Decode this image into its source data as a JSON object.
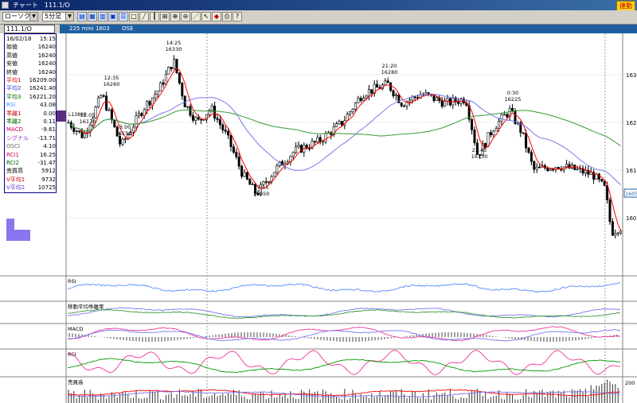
{
  "window": {
    "title": "チャート　111.1/O",
    "badge": "連動"
  },
  "toolbar": {
    "type_select": "ローソク",
    "interval_select": "5分足",
    "icons": [
      "bar-chart-icon",
      "grid-icon",
      "table-icon",
      "calendar-icon",
      "list-icon",
      "frame-icon",
      "trend-icon",
      "candle-icon",
      "measure-icon",
      "zoom-icon",
      "zoom-out-icon",
      "draw-line-icon",
      "pointer-icon",
      "lock-icon",
      "print-icon",
      "help-icon"
    ]
  },
  "symbol_box": "111.1/O",
  "header": {
    "name": "225 mini 1603",
    "exchange": "OSE"
  },
  "info_panel": [
    {
      "label": "16/02/18",
      "value": "15:15",
      "color": "#000000"
    },
    {
      "label": "始値",
      "value": "16240",
      "color": "#000000"
    },
    {
      "label": "高値",
      "value": "16240",
      "color": "#000000"
    },
    {
      "label": "安値",
      "value": "16240",
      "color": "#000000"
    },
    {
      "label": "終値",
      "value": "16240",
      "color": "#000000"
    },
    {
      "label": "平均1",
      "value": "16209.00",
      "color": "#cc0000"
    },
    {
      "label": "平均2",
      "value": "16241.40",
      "color": "#3333cc"
    },
    {
      "label": "平均3",
      "value": "16221.20",
      "color": "#006600"
    },
    {
      "label": "RSI",
      "value": "43.08",
      "color": "#3399ff"
    },
    {
      "label": "乖離1",
      "value": "0.00",
      "color": "#cc0000"
    },
    {
      "label": "乖離2",
      "value": "0.11",
      "color": "#006600"
    },
    {
      "label": "MACD",
      "value": "-9.61",
      "color": "#cc0066"
    },
    {
      "label": "シグナル",
      "value": "-13.71",
      "color": "#9933cc"
    },
    {
      "label": "OSCI",
      "value": "4.10",
      "color": "#666666"
    },
    {
      "label": "RCI1",
      "value": "16.25",
      "color": "#cc0066"
    },
    {
      "label": "RCI2",
      "value": "-31.47",
      "color": "#006600"
    },
    {
      "label": "売買高",
      "value": "5912",
      "color": "#000000"
    },
    {
      "label": "V平均1",
      "value": "9732",
      "color": "#cc0000"
    },
    {
      "label": "V平均2",
      "value": "10725",
      "color": "#6633cc"
    }
  ],
  "price_axis": {
    "labels": [
      {
        "text": "163",
        "value": 16300
      },
      {
        "text": "162",
        "value": 16200
      },
      {
        "text": "161",
        "value": 16100
      },
      {
        "text": "160",
        "value": 16000
      }
    ],
    "current_price_tag": "1605"
  },
  "annotations": [
    {
      "time": "12:05",
      "price": "16170"
    },
    {
      "time": "12:35",
      "price": "16260"
    },
    {
      "time": "13:00",
      "price": "16150"
    },
    {
      "time": "14:25",
      "price": "16330"
    },
    {
      "time": "17:55",
      "price": "16050"
    },
    {
      "time": "21:20",
      "price": "16280"
    },
    {
      "time": "23:45",
      "price": "16130"
    },
    {
      "time": "0:30",
      "price": "16225"
    }
  ],
  "left_label": "L13806",
  "panels": {
    "rsi": "RSI",
    "kairi": "移動平均乖離率",
    "macd": "MACD",
    "rci": "RCI",
    "volume": "売買高",
    "volume_axis": "200"
  },
  "colors": {
    "candle": "#000000",
    "ma1": "#ff0000",
    "ma2": "#7777ee",
    "ma3": "#339933",
    "rsi": "#5588ff",
    "macd": "#ee3399",
    "rci2": "#009900",
    "volbar": "#8877ee",
    "header": "#1f5fa0"
  }
}
